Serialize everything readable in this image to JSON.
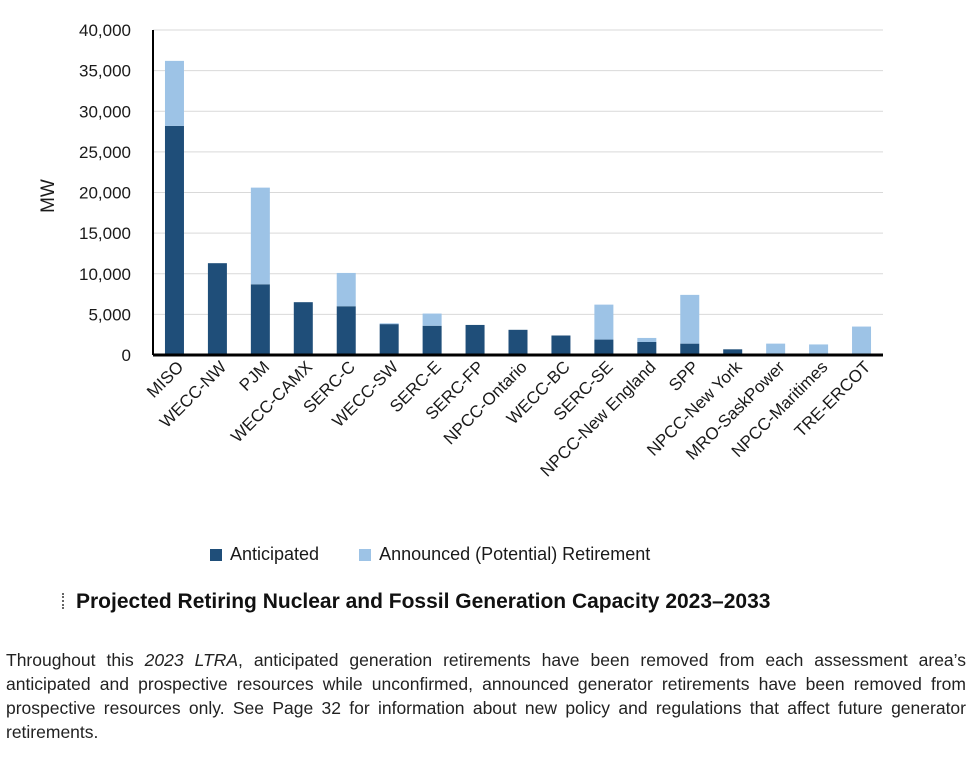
{
  "colors": {
    "anticipated": "#1f4e79",
    "announced": "#9dc3e6",
    "grid": "#d9d9d9",
    "axis": "#000000"
  },
  "chart_data": {
    "type": "bar",
    "stacked": true,
    "title": "Projected Retiring Nuclear and Fossil Generation Capacity 2023–2033",
    "xlabel": "",
    "ylabel": "MW",
    "ylim": [
      0,
      40000
    ],
    "yticks": [
      0,
      5000,
      10000,
      15000,
      20000,
      25000,
      30000,
      35000,
      40000
    ],
    "ytick_labels": [
      "0",
      "5,000",
      "10,000",
      "15,000",
      "20,000",
      "25,000",
      "30,000",
      "35,000",
      "40,000"
    ],
    "grid": true,
    "legend_position": "bottom",
    "categories": [
      "MISO",
      "WECC-NW",
      "PJM",
      "WECC-CAMX",
      "SERC-C",
      "WECC-SW",
      "SERC-E",
      "SERC-FP",
      "NPCC-Ontario",
      "WECC-BC",
      "SERC-SE",
      "NPCC-New England",
      "SPP",
      "NPCC-New York",
      "MRO-SaskPower",
      "NPCC-Maritimes",
      "TRE-ERCOT"
    ],
    "series": [
      {
        "name": "Anticipated",
        "values": [
          28200,
          11300,
          8700,
          6500,
          6000,
          3800,
          3600,
          3700,
          3100,
          2400,
          1900,
          1600,
          1400,
          700,
          0,
          0,
          0
        ]
      },
      {
        "name": "Announced (Potential) Retirement",
        "values": [
          8000,
          0,
          11900,
          0,
          4100,
          100,
          1500,
          0,
          0,
          0,
          4300,
          500,
          6000,
          0,
          1400,
          1300,
          3500
        ]
      }
    ]
  },
  "caption": {
    "title": "Projected Retiring Nuclear and Fossil Generation Capacity 2023–2033"
  },
  "paragraph": {
    "part1": "Throughout this ",
    "italic": "2023 LTRA",
    "part2": ", anticipated generation retirements have been removed from each assessment area’s anticipated and prospective resources while unconfirmed, announced generator retirements have been removed from prospective resources only. See Page 32 for information about new policy and regulations that affect future generator retirements."
  }
}
